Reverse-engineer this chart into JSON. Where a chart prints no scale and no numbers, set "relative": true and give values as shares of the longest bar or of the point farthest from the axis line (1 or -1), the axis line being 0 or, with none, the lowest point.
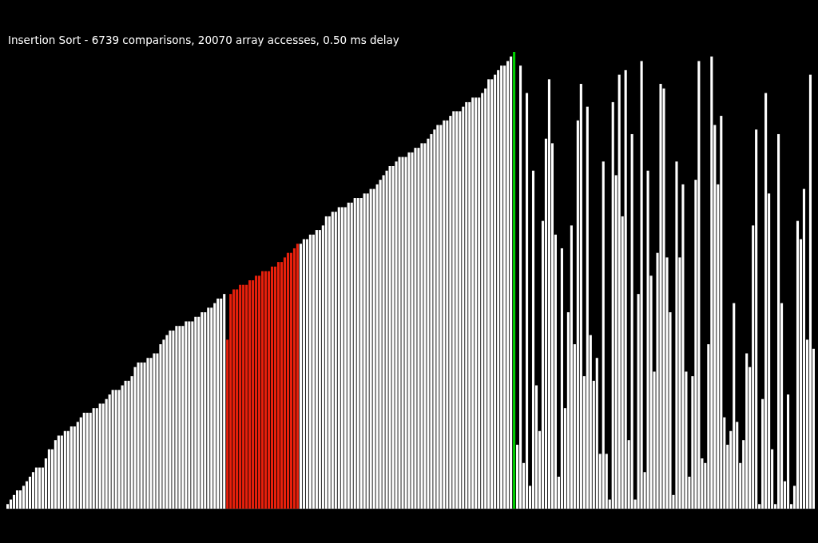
{
  "chart_data": {
    "type": "bar",
    "title": "Insertion Sort - 6739 comparisons, 20070 array accesses, 0.50 ms delay",
    "relative": true,
    "categories": [
      null,
      null,
      null,
      null,
      null,
      null,
      null,
      null,
      null,
      null,
      null,
      null,
      null,
      null,
      null,
      null,
      null,
      null,
      null,
      null,
      null,
      null,
      null,
      null,
      null,
      null,
      null,
      null,
      null,
      null,
      null,
      null,
      null,
      null,
      null,
      null,
      null,
      null,
      null,
      null,
      null,
      null,
      null,
      null,
      null,
      null,
      null,
      null,
      null,
      null,
      null,
      null,
      null,
      null,
      null,
      null,
      null,
      null,
      null,
      null,
      null,
      null,
      null,
      null,
      null,
      null,
      null,
      null,
      null,
      null,
      null,
      null,
      null,
      null,
      null,
      null,
      null,
      null,
      null,
      null,
      null,
      null,
      null,
      null,
      null,
      null,
      null,
      null,
      null,
      null,
      null,
      null,
      null,
      null,
      null,
      null,
      null,
      null,
      null,
      null,
      null,
      null,
      null,
      null,
      null,
      null,
      null,
      null,
      null,
      null,
      null,
      null,
      null,
      null,
      null,
      null,
      null,
      null,
      null,
      null,
      null,
      null,
      null,
      null,
      null,
      null,
      null,
      null,
      null,
      null,
      null,
      null,
      null,
      null,
      null,
      null,
      null,
      null,
      null,
      null,
      null,
      null,
      null,
      null,
      null,
      null,
      null,
      null,
      null,
      null,
      null,
      null,
      null,
      null,
      null,
      null,
      null,
      null,
      null,
      null,
      null,
      null,
      null,
      null,
      null,
      null,
      null,
      null,
      null,
      null,
      null,
      null,
      null,
      null,
      null,
      null,
      null,
      null,
      null,
      null,
      null,
      null,
      null,
      null,
      null,
      null,
      null,
      null,
      null,
      null,
      null,
      null,
      null,
      null,
      null,
      null,
      null,
      null,
      null,
      null,
      null,
      null,
      null,
      null,
      null,
      null,
      null,
      null,
      null,
      null,
      null,
      null,
      null,
      null,
      null,
      null,
      null,
      null,
      null,
      null,
      null,
      null,
      null,
      null,
      null,
      null,
      null,
      null,
      null,
      null,
      null,
      null,
      null,
      null,
      null,
      null,
      null,
      null,
      null,
      null,
      null,
      null,
      null,
      null,
      null,
      null,
      null,
      null,
      null,
      null,
      null,
      null,
      null,
      null
    ],
    "values": [
      0.01,
      0.02,
      0.03,
      0.04,
      0.04,
      0.05,
      0.06,
      0.07,
      0.08,
      0.09,
      0.09,
      0.09,
      0.11,
      0.13,
      0.13,
      0.15,
      0.16,
      0.16,
      0.17,
      0.17,
      0.18,
      0.18,
      0.19,
      0.2,
      0.21,
      0.21,
      0.21,
      0.22,
      0.22,
      0.23,
      0.23,
      0.24,
      0.25,
      0.26,
      0.26,
      0.26,
      0.27,
      0.28,
      0.28,
      0.29,
      0.31,
      0.32,
      0.32,
      0.32,
      0.33,
      0.33,
      0.34,
      0.34,
      0.36,
      0.37,
      0.38,
      0.39,
      0.39,
      0.4,
      0.4,
      0.4,
      0.41,
      0.41,
      0.41,
      0.42,
      0.42,
      0.43,
      0.43,
      0.44,
      0.44,
      0.45,
      0.46,
      0.46,
      0.47,
      0.37,
      0.47,
      0.48,
      0.48,
      0.49,
      0.49,
      0.49,
      0.5,
      0.5,
      0.51,
      0.51,
      0.52,
      0.52,
      0.52,
      0.53,
      0.53,
      0.54,
      0.54,
      0.55,
      0.56,
      0.56,
      0.57,
      0.58,
      0.58,
      0.59,
      0.59,
      0.6,
      0.6,
      0.61,
      0.61,
      0.62,
      0.64,
      0.64,
      0.65,
      0.65,
      0.66,
      0.66,
      0.66,
      0.67,
      0.67,
      0.68,
      0.68,
      0.68,
      0.69,
      0.69,
      0.7,
      0.7,
      0.71,
      0.72,
      0.73,
      0.74,
      0.75,
      0.75,
      0.76,
      0.77,
      0.77,
      0.77,
      0.78,
      0.78,
      0.79,
      0.79,
      0.8,
      0.8,
      0.81,
      0.82,
      0.83,
      0.84,
      0.84,
      0.85,
      0.85,
      0.86,
      0.87,
      0.87,
      0.87,
      0.88,
      0.89,
      0.89,
      0.9,
      0.9,
      0.9,
      0.91,
      0.92,
      0.94,
      0.94,
      0.95,
      0.96,
      0.97,
      0.97,
      0.98,
      0.99,
      1,
      0.14,
      0.97,
      0.1,
      0.91,
      0.05,
      0.74,
      0.27,
      0.17,
      0.63,
      0.81,
      0.94,
      0.8,
      0.6,
      0.07,
      0.57,
      0.22,
      0.43,
      0.62,
      0.36,
      0.85,
      0.93,
      0.29,
      0.88,
      0.38,
      0.28,
      0.33,
      0.12,
      0.76,
      0.12,
      0.02,
      0.89,
      0.73,
      0.95,
      0.64,
      0.96,
      0.15,
      0.82,
      0.02,
      0.47,
      0.98,
      0.08,
      0.74,
      0.51,
      0.3,
      0.56,
      0.93,
      0.92,
      0.55,
      0.43,
      0.03,
      0.76,
      0.55,
      0.71,
      0.3,
      0.07,
      0.29,
      0.72,
      0.98,
      0.11,
      0.1,
      0.36,
      0.99,
      0.84,
      0.71,
      0.86,
      0.2,
      0.14,
      0.17,
      0.45,
      0.19,
      0.1,
      0.15,
      0.34,
      0.31,
      0.62,
      0.83,
      0.01,
      0.24,
      0.91,
      0.69,
      0.13,
      0.01,
      0.82,
      0.45,
      0.06,
      0.25,
      0.01,
      0.05,
      0.63,
      0.59,
      0.7,
      0.37,
      0.95,
      0.35
    ],
    "colors": [
      "#ffffff",
      "#ffffff",
      "#ffffff",
      "#ffffff",
      "#ffffff",
      "#ffffff",
      "#ffffff",
      "#ffffff",
      "#ffffff",
      "#ffffff",
      "#ffffff",
      "#ffffff",
      "#ffffff",
      "#ffffff",
      "#ffffff",
      "#ffffff",
      "#ffffff",
      "#ffffff",
      "#ffffff",
      "#ffffff",
      "#ffffff",
      "#ffffff",
      "#ffffff",
      "#ffffff",
      "#ffffff",
      "#ffffff",
      "#ffffff",
      "#ffffff",
      "#ffffff",
      "#ffffff",
      "#ffffff",
      "#ffffff",
      "#ffffff",
      "#ffffff",
      "#ffffff",
      "#ffffff",
      "#ffffff",
      "#ffffff",
      "#ffffff",
      "#ffffff",
      "#ffffff",
      "#ffffff",
      "#ffffff",
      "#ffffff",
      "#ffffff",
      "#ffffff",
      "#ffffff",
      "#ffffff",
      "#ffffff",
      "#ffffff",
      "#ffffff",
      "#ffffff",
      "#ffffff",
      "#ffffff",
      "#ffffff",
      "#ffffff",
      "#ffffff",
      "#ffffff",
      "#ffffff",
      "#ffffff",
      "#ffffff",
      "#ffffff",
      "#ffffff",
      "#ffffff",
      "#ffffff",
      "#ffffff",
      "#ffffff",
      "#ffffff",
      "#ffffff",
      "#e8200c",
      "#e8200c",
      "#e8200c",
      "#e8200c",
      "#e8200c",
      "#e8200c",
      "#e8200c",
      "#e8200c",
      "#e8200c",
      "#e8200c",
      "#e8200c",
      "#e8200c",
      "#e8200c",
      "#e8200c",
      "#e8200c",
      "#e8200c",
      "#e8200c",
      "#e8200c",
      "#e8200c",
      "#e8200c",
      "#e8200c",
      "#e8200c",
      "#e8200c",
      "#ffffff",
      "#ffffff",
      "#ffffff",
      "#ffffff",
      "#ffffff",
      "#ffffff",
      "#ffffff",
      "#ffffff",
      "#ffffff",
      "#ffffff",
      "#ffffff",
      "#ffffff",
      "#ffffff",
      "#ffffff",
      "#ffffff",
      "#ffffff",
      "#ffffff",
      "#ffffff",
      "#ffffff",
      "#ffffff",
      "#ffffff",
      "#ffffff",
      "#ffffff",
      "#ffffff",
      "#ffffff",
      "#ffffff",
      "#ffffff",
      "#ffffff",
      "#ffffff",
      "#ffffff",
      "#ffffff",
      "#ffffff",
      "#ffffff",
      "#ffffff",
      "#ffffff",
      "#ffffff",
      "#ffffff",
      "#ffffff",
      "#ffffff",
      "#ffffff",
      "#ffffff",
      "#ffffff",
      "#ffffff",
      "#ffffff",
      "#ffffff",
      "#ffffff",
      "#ffffff",
      "#ffffff",
      "#ffffff",
      "#ffffff",
      "#ffffff",
      "#ffffff",
      "#ffffff",
      "#ffffff",
      "#ffffff",
      "#ffffff",
      "#ffffff",
      "#ffffff",
      "#ffffff",
      "#ffffff",
      "#ffffff",
      "#ffffff",
      "#ffffff",
      "#ffffff",
      "#ffffff",
      "#ffffff",
      "#ffffff",
      "#00d000",
      "#ffffff",
      "#ffffff",
      "#ffffff",
      "#ffffff",
      "#ffffff",
      "#ffffff",
      "#ffffff",
      "#ffffff",
      "#ffffff",
      "#ffffff",
      "#ffffff",
      "#ffffff",
      "#ffffff",
      "#ffffff",
      "#ffffff",
      "#ffffff",
      "#ffffff",
      "#ffffff",
      "#ffffff",
      "#ffffff",
      "#ffffff",
      "#ffffff",
      "#ffffff",
      "#ffffff",
      "#ffffff",
      "#ffffff",
      "#ffffff",
      "#ffffff",
      "#ffffff",
      "#ffffff",
      "#ffffff",
      "#ffffff",
      "#ffffff",
      "#ffffff",
      "#ffffff",
      "#ffffff",
      "#ffffff",
      "#ffffff",
      "#ffffff",
      "#ffffff",
      "#ffffff",
      "#ffffff",
      "#ffffff",
      "#ffffff",
      "#ffffff",
      "#ffffff",
      "#ffffff",
      "#ffffff",
      "#ffffff",
      "#ffffff",
      "#ffffff",
      "#ffffff",
      "#ffffff",
      "#ffffff",
      "#ffffff",
      "#ffffff",
      "#ffffff",
      "#ffffff",
      "#ffffff",
      "#ffffff",
      "#ffffff",
      "#ffffff",
      "#ffffff",
      "#ffffff",
      "#ffffff",
      "#ffffff",
      "#ffffff",
      "#ffffff",
      "#ffffff",
      "#ffffff",
      "#ffffff",
      "#ffffff",
      "#ffffff",
      "#ffffff",
      "#ffffff",
      "#ffffff",
      "#ffffff",
      "#ffffff",
      "#ffffff",
      "#ffffff",
      "#ffffff",
      "#ffffff",
      "#ffffff",
      "#ffffff",
      "#ffffff",
      "#ffffff",
      "#ffffff",
      "#ffffff",
      "#ffffff",
      "#ffffff",
      "#ffffff",
      "#ffffff",
      "#ffffff",
      "#ffffff"
    ]
  }
}
